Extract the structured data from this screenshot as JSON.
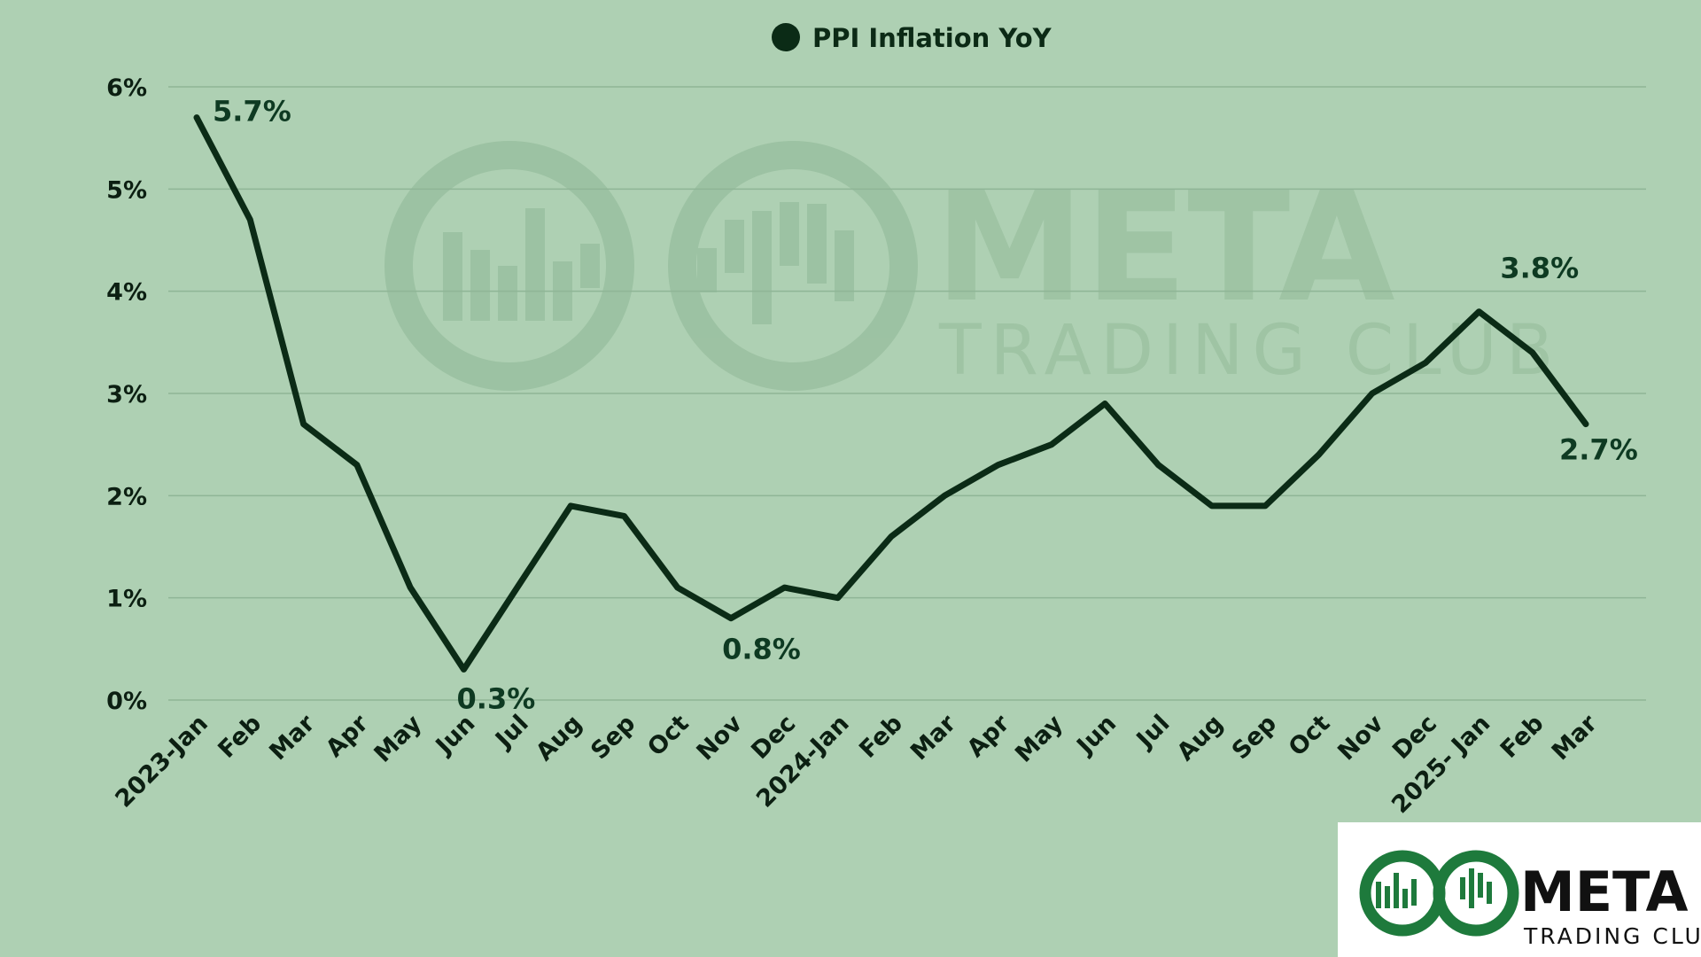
{
  "chart_data": {
    "type": "line",
    "legend": {
      "label": "PPI Inflation YoY",
      "placement": "top-center"
    },
    "series": [
      {
        "name": "PPI Inflation YoY",
        "color": "#0b2b16",
        "values": [
          5.7,
          4.7,
          2.7,
          2.3,
          1.1,
          0.3,
          1.1,
          1.9,
          1.8,
          1.1,
          0.8,
          1.1,
          1.0,
          1.6,
          2.0,
          2.3,
          2.5,
          2.9,
          2.3,
          1.9,
          1.9,
          2.4,
          3.0,
          3.3,
          3.8,
          3.4,
          2.7
        ]
      }
    ],
    "categories": [
      "2023-Jan",
      "Feb",
      "Mar",
      "Apr",
      "May",
      "Jun",
      "Jul",
      "Aug",
      "Sep",
      "Oct",
      "Nov",
      "Dec",
      "2024-Jan",
      "Feb",
      "Mar",
      "Apr",
      "May",
      "Jun",
      "Jul",
      "Aug",
      "Sep",
      "Oct",
      "Nov",
      "Dec",
      "2025- Jan",
      "Feb",
      "Mar"
    ],
    "y_ticks": [
      "0%",
      "1%",
      "2%",
      "3%",
      "4%",
      "5%",
      "6%"
    ],
    "ylim": [
      0,
      6
    ],
    "grid": true,
    "annotations": [
      {
        "index": 0,
        "text": "5.7%"
      },
      {
        "index": 5,
        "text": "0.3%"
      },
      {
        "index": 10,
        "text": "0.8%"
      },
      {
        "index": 24,
        "text": "3.8%"
      },
      {
        "index": 26,
        "text": "2.7%"
      }
    ]
  },
  "watermark": {
    "title": "META",
    "subtitle": "TRADING CLUB"
  },
  "logo": {
    "title": "META",
    "subtitle": "TRADING CLUB",
    "brand_color": "#1e7a3c"
  },
  "colors": {
    "background": "#aed0b3",
    "line": "#0b2b16",
    "grid": "#8fb596"
  }
}
